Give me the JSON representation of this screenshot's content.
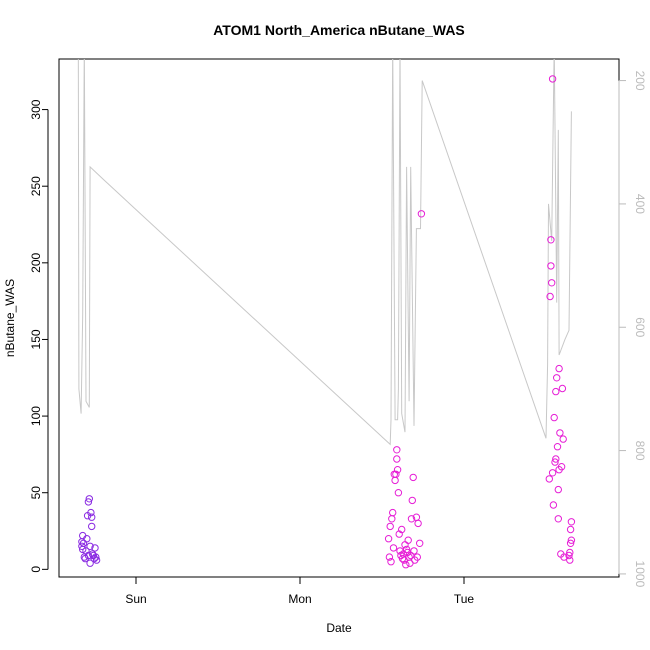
{
  "chart_data": {
    "type": "scatter",
    "title": "ATOM1 North_America nButane_WAS",
    "xlabel": "Date",
    "ylabel": "nButane_WAS",
    "x_ticks": [
      "Sun",
      "Mon",
      "Tue"
    ],
    "y_ticks": [
      0,
      50,
      100,
      150,
      200,
      250,
      300
    ],
    "ylim": [
      -5,
      333
    ],
    "y2_ticks": [
      200,
      400,
      600,
      800,
      1000
    ],
    "y2lim": [
      1005,
      165
    ],
    "grid": false,
    "colors": {
      "early_points": "#8a2be2",
      "late_points": "#e61ed6",
      "altitude_line": "#c8c8c8",
      "axis": "#000000",
      "y2_axis": "#bbbbbb"
    },
    "altitude_series": [
      [
        -0.352,
        140
      ],
      [
        -0.348,
        700
      ],
      [
        -0.335,
        740
      ],
      [
        -0.325,
        580
      ],
      [
        -0.315,
        140
      ],
      [
        -0.305,
        720
      ],
      [
        -0.285,
        730
      ],
      [
        -0.28,
        340
      ],
      [
        -0.2,
        360
      ],
      [
        1.55,
        790
      ],
      [
        1.555,
        750
      ],
      [
        1.565,
        140
      ],
      [
        1.58,
        750
      ],
      [
        1.595,
        750
      ],
      [
        1.6,
        700
      ],
      [
        1.61,
        140
      ],
      [
        1.62,
        740
      ],
      [
        1.64,
        770
      ],
      [
        1.65,
        340
      ],
      [
        1.665,
        720
      ],
      [
        1.675,
        340
      ],
      [
        1.695,
        760
      ],
      [
        1.71,
        440
      ],
      [
        1.735,
        440
      ],
      [
        1.745,
        200
      ],
      [
        2.5,
        780
      ],
      [
        2.51,
        660
      ],
      [
        2.515,
        400
      ],
      [
        2.535,
        460
      ],
      [
        2.55,
        140
      ],
      [
        2.565,
        560
      ],
      [
        2.575,
        280
      ],
      [
        2.58,
        645
      ],
      [
        2.615,
        620
      ],
      [
        2.64,
        605
      ],
      [
        2.655,
        250
      ]
    ],
    "points": [
      {
        "x": -0.33,
        "y": 15,
        "g": 0
      },
      {
        "x": -0.33,
        "y": 18,
        "g": 0
      },
      {
        "x": -0.325,
        "y": 22,
        "g": 0
      },
      {
        "x": -0.325,
        "y": 13,
        "g": 0
      },
      {
        "x": -0.32,
        "y": 17,
        "g": 0
      },
      {
        "x": -0.315,
        "y": 8,
        "g": 0
      },
      {
        "x": -0.31,
        "y": 7,
        "g": 0
      },
      {
        "x": -0.305,
        "y": 12,
        "g": 0
      },
      {
        "x": -0.3,
        "y": 20,
        "g": 0
      },
      {
        "x": -0.295,
        "y": 35,
        "g": 0
      },
      {
        "x": -0.29,
        "y": 44,
        "g": 0
      },
      {
        "x": -0.29,
        "y": 9,
        "g": 0
      },
      {
        "x": -0.285,
        "y": 46,
        "g": 0
      },
      {
        "x": -0.28,
        "y": 15,
        "g": 0
      },
      {
        "x": -0.28,
        "y": 4,
        "g": 0
      },
      {
        "x": -0.275,
        "y": 37,
        "g": 0
      },
      {
        "x": -0.27,
        "y": 34,
        "g": 0
      },
      {
        "x": -0.27,
        "y": 28,
        "g": 0
      },
      {
        "x": -0.265,
        "y": 10,
        "g": 0
      },
      {
        "x": -0.26,
        "y": 9,
        "g": 0
      },
      {
        "x": -0.255,
        "y": 7,
        "g": 0
      },
      {
        "x": -0.25,
        "y": 14,
        "g": 0
      },
      {
        "x": -0.245,
        "y": 8,
        "g": 0
      },
      {
        "x": -0.24,
        "y": 6,
        "g": 0
      },
      {
        "x": 1.54,
        "y": 20,
        "g": 1
      },
      {
        "x": 1.545,
        "y": 8,
        "g": 1
      },
      {
        "x": 1.55,
        "y": 28,
        "g": 1
      },
      {
        "x": 1.555,
        "y": 5,
        "g": 1
      },
      {
        "x": 1.56,
        "y": 33,
        "g": 1
      },
      {
        "x": 1.565,
        "y": 37,
        "g": 1
      },
      {
        "x": 1.57,
        "y": 14,
        "g": 1
      },
      {
        "x": 1.575,
        "y": 62,
        "g": 1
      },
      {
        "x": 1.58,
        "y": 58,
        "g": 1
      },
      {
        "x": 1.585,
        "y": 62,
        "g": 1
      },
      {
        "x": 1.59,
        "y": 72,
        "g": 1
      },
      {
        "x": 1.59,
        "y": 78,
        "g": 1
      },
      {
        "x": 1.595,
        "y": 65,
        "g": 1
      },
      {
        "x": 1.6,
        "y": 50,
        "g": 1
      },
      {
        "x": 1.605,
        "y": 23,
        "g": 1
      },
      {
        "x": 1.61,
        "y": 12,
        "g": 1
      },
      {
        "x": 1.615,
        "y": 9,
        "g": 1
      },
      {
        "x": 1.62,
        "y": 26,
        "g": 1
      },
      {
        "x": 1.625,
        "y": 7,
        "g": 1
      },
      {
        "x": 1.63,
        "y": 10,
        "g": 1
      },
      {
        "x": 1.635,
        "y": 6,
        "g": 1
      },
      {
        "x": 1.64,
        "y": 16,
        "g": 1
      },
      {
        "x": 1.645,
        "y": 3,
        "g": 1
      },
      {
        "x": 1.65,
        "y": 13,
        "g": 1
      },
      {
        "x": 1.655,
        "y": 11,
        "g": 1
      },
      {
        "x": 1.66,
        "y": 19,
        "g": 1
      },
      {
        "x": 1.665,
        "y": 8,
        "g": 1
      },
      {
        "x": 1.67,
        "y": 4,
        "g": 1
      },
      {
        "x": 1.675,
        "y": 9,
        "g": 1
      },
      {
        "x": 1.68,
        "y": 33,
        "g": 1
      },
      {
        "x": 1.685,
        "y": 45,
        "g": 1
      },
      {
        "x": 1.69,
        "y": 60,
        "g": 1
      },
      {
        "x": 1.695,
        "y": 12,
        "g": 1
      },
      {
        "x": 1.7,
        "y": 6,
        "g": 1
      },
      {
        "x": 1.71,
        "y": 34,
        "g": 1
      },
      {
        "x": 1.715,
        "y": 8,
        "g": 1
      },
      {
        "x": 1.72,
        "y": 30,
        "g": 1
      },
      {
        "x": 1.73,
        "y": 17,
        "g": 1
      },
      {
        "x": 1.74,
        "y": 232,
        "g": 1
      },
      {
        "x": 2.52,
        "y": 59,
        "g": 1
      },
      {
        "x": 2.525,
        "y": 178,
        "g": 1
      },
      {
        "x": 2.53,
        "y": 215,
        "g": 1
      },
      {
        "x": 2.53,
        "y": 198,
        "g": 1
      },
      {
        "x": 2.535,
        "y": 187,
        "g": 1
      },
      {
        "x": 2.54,
        "y": 320,
        "g": 1
      },
      {
        "x": 2.54,
        "y": 63,
        "g": 1
      },
      {
        "x": 2.545,
        "y": 42,
        "g": 1
      },
      {
        "x": 2.55,
        "y": 99,
        "g": 1
      },
      {
        "x": 2.555,
        "y": 70,
        "g": 1
      },
      {
        "x": 2.56,
        "y": 116,
        "g": 1
      },
      {
        "x": 2.56,
        "y": 72,
        "g": 1
      },
      {
        "x": 2.565,
        "y": 125,
        "g": 1
      },
      {
        "x": 2.57,
        "y": 80,
        "g": 1
      },
      {
        "x": 2.575,
        "y": 52,
        "g": 1
      },
      {
        "x": 2.575,
        "y": 33,
        "g": 1
      },
      {
        "x": 2.58,
        "y": 131,
        "g": 1
      },
      {
        "x": 2.58,
        "y": 65,
        "g": 1
      },
      {
        "x": 2.585,
        "y": 89,
        "g": 1
      },
      {
        "x": 2.59,
        "y": 10,
        "g": 1
      },
      {
        "x": 2.595,
        "y": 67,
        "g": 1
      },
      {
        "x": 2.6,
        "y": 118,
        "g": 1
      },
      {
        "x": 2.605,
        "y": 85,
        "g": 1
      },
      {
        "x": 2.61,
        "y": 8,
        "g": 1
      },
      {
        "x": 2.64,
        "y": 9,
        "g": 1
      },
      {
        "x": 2.645,
        "y": 6,
        "g": 1
      },
      {
        "x": 2.645,
        "y": 11,
        "g": 1
      },
      {
        "x": 2.65,
        "y": 26,
        "g": 1
      },
      {
        "x": 2.65,
        "y": 17,
        "g": 1
      },
      {
        "x": 2.655,
        "y": 31,
        "g": 1
      },
      {
        "x": 2.655,
        "y": 19,
        "g": 1
      }
    ]
  }
}
